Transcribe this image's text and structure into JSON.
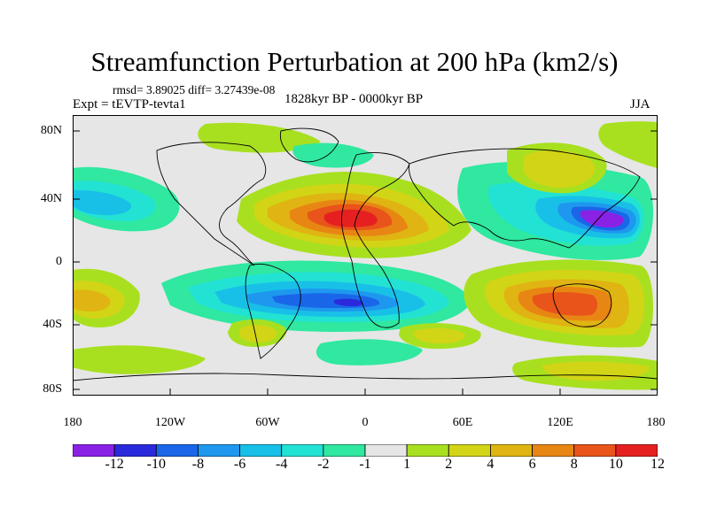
{
  "title": "Streamfunction Perturbation at 200 hPa (km2/s)",
  "stats": "rmsd= 3.89025 diff= 3.27439e-08",
  "experiment": "Expt = tEVTP-tevta1",
  "period": "1828kyr BP - 0000kyr BP",
  "season": "JJA",
  "y_ticks": [
    "80N",
    "40N",
    "0",
    "40S",
    "80S"
  ],
  "x_ticks": [
    "180",
    "120W",
    "60W",
    "0",
    "60E",
    "120E",
    "180"
  ],
  "colorbar": {
    "levels": [
      "-12",
      "-10",
      "-8",
      "-6",
      "-4",
      "-2",
      "-1",
      "1",
      "2",
      "4",
      "6",
      "8",
      "10",
      "12"
    ],
    "colors": [
      "#8a22e6",
      "#2a2adc",
      "#1a66e8",
      "#1e98ee",
      "#18c0e8",
      "#22e2d4",
      "#30e8a0",
      "#e6e6e6",
      "#a8e020",
      "#d2d416",
      "#e0b412",
      "#e88614",
      "#e8541a",
      "#e62020"
    ]
  }
}
